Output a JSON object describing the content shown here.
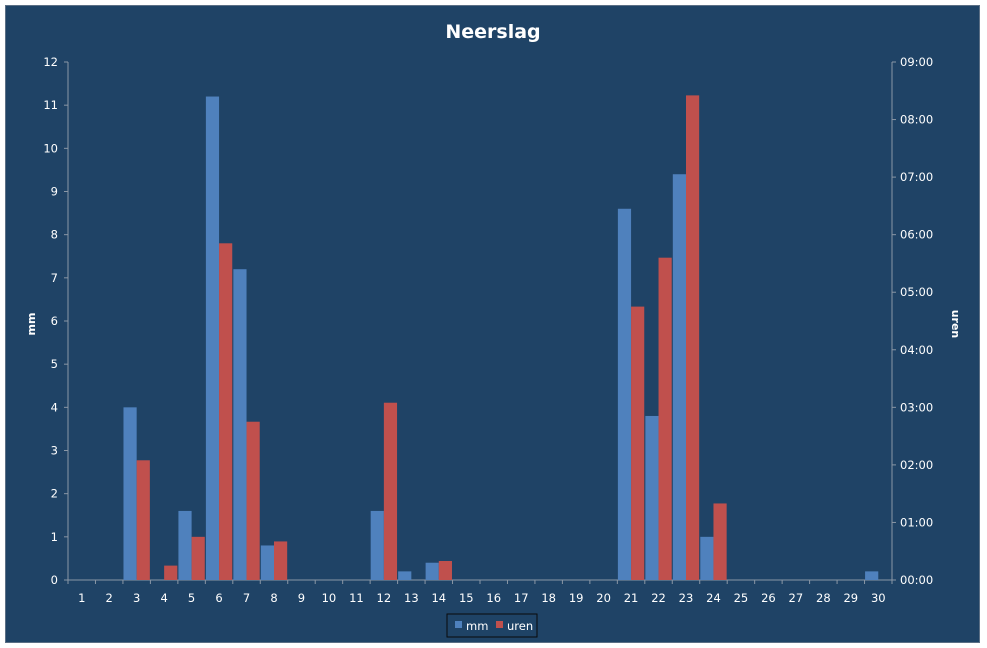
{
  "chart_data": {
    "type": "bar",
    "title": "Neerslag",
    "ylabel": "mm",
    "y2label": "uren",
    "categories": [
      "1",
      "2",
      "3",
      "4",
      "5",
      "6",
      "7",
      "8",
      "9",
      "10",
      "11",
      "12",
      "13",
      "14",
      "15",
      "16",
      "17",
      "18",
      "19",
      "20",
      "21",
      "22",
      "23",
      "24",
      "25",
      "26",
      "27",
      "28",
      "29",
      "30"
    ],
    "ylim": [
      0,
      12
    ],
    "yticks": [
      "0",
      "1",
      "2",
      "3",
      "4",
      "5",
      "6",
      "7",
      "8",
      "9",
      "10",
      "11",
      "12"
    ],
    "y2lim_hours": [
      0,
      9
    ],
    "y2ticks": [
      "00:00",
      "01:00",
      "02:00",
      "03:00",
      "04:00",
      "05:00",
      "06:00",
      "07:00",
      "08:00",
      "09:00"
    ],
    "series": [
      {
        "name": "mm",
        "axis": "left",
        "color": "#4f81bd",
        "values": [
          0,
          0,
          4.0,
          0,
          1.6,
          11.2,
          7.2,
          0.8,
          0,
          0,
          0,
          1.6,
          0.2,
          0.4,
          0,
          0,
          0,
          0,
          0,
          0,
          8.6,
          3.8,
          9.4,
          1.0,
          0,
          0,
          0,
          0,
          0,
          0.2
        ]
      },
      {
        "name": "uren",
        "axis": "right",
        "color": "#c0504d",
        "values_hours": [
          0,
          0,
          2.08,
          0.25,
          0.75,
          5.85,
          2.75,
          0.67,
          0,
          0,
          0,
          3.08,
          0,
          0.33,
          0,
          0,
          0,
          0,
          0,
          0,
          4.75,
          5.6,
          8.42,
          1.33,
          0,
          0,
          0,
          0,
          0,
          0
        ]
      }
    ],
    "legend": {
      "position": "bottom",
      "entries": [
        "mm",
        "uren"
      ]
    },
    "grid": false
  },
  "colors": {
    "background": "#1f4366",
    "mm": "#4f81bd",
    "uren": "#c0504d"
  }
}
